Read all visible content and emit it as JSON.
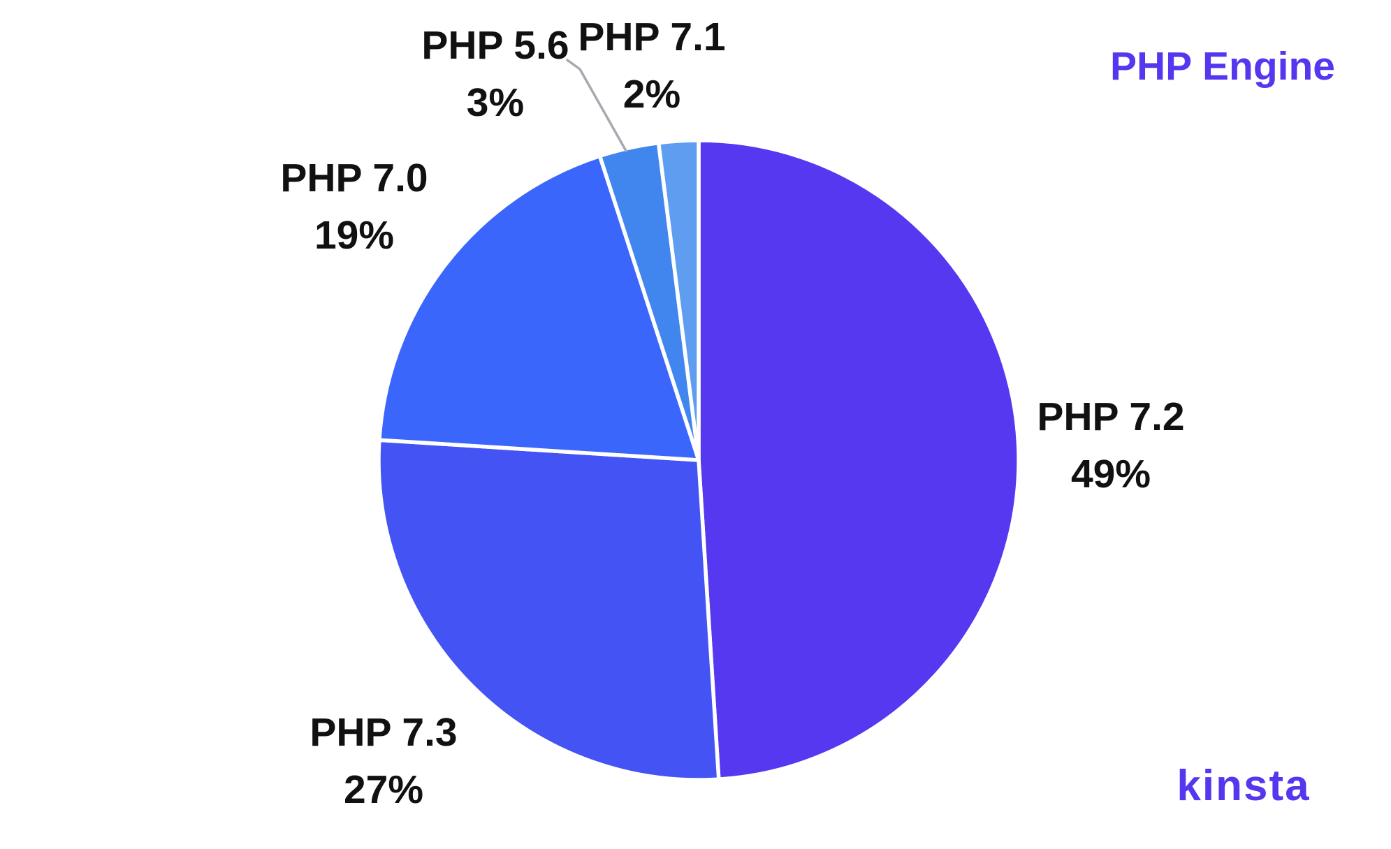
{
  "chart_data": {
    "type": "pie",
    "title": "PHP Engine",
    "title_color": "#5636ee",
    "direction": "clockwise",
    "start_angle_deg": 0,
    "labels_position": "outside",
    "legend": "none",
    "separator_color": "#ffffff",
    "label_text_color": "#111111",
    "slices": [
      {
        "label": "PHP 7.2",
        "value": 49,
        "pct_label": "49%",
        "color": "#5538ef"
      },
      {
        "label": "PHP 7.3",
        "value": 27,
        "pct_label": "27%",
        "color": "#4453f4"
      },
      {
        "label": "PHP 7.0",
        "value": 19,
        "pct_label": "19%",
        "color": "#3b66fc"
      },
      {
        "label": "PHP 5.6",
        "value": 3,
        "pct_label": "3%",
        "color": "#4186ee"
      },
      {
        "label": "PHP 7.1",
        "value": 2,
        "pct_label": "2%",
        "color": "#5e9df0"
      }
    ]
  },
  "branding": {
    "logo_text": "kinsta",
    "logo_color": "#5636ee"
  }
}
